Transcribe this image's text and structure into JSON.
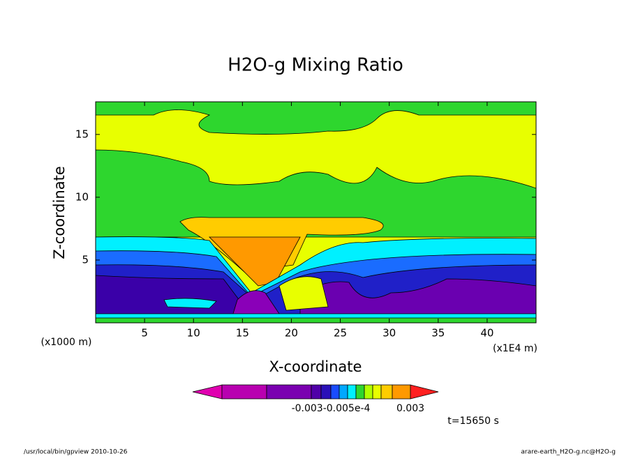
{
  "chart_data": {
    "type": "contour",
    "title": "H2O-g Mixing Ratio",
    "x_label": "X-coordinate",
    "y_label": "Z-coordinate",
    "x_unit": "(x1E4 m)",
    "y_unit": "(x1000 m)",
    "xlim": [
      0,
      45
    ],
    "xticks": [
      5,
      10,
      15,
      20,
      25,
      30,
      35,
      40
    ],
    "ylim": [
      0,
      17.6
    ],
    "yticks": [
      5,
      10,
      15
    ],
    "colorbar_labels": [
      "-0.003-0.005e-4",
      "0.003"
    ],
    "time_label": "t=15650 s",
    "footer_left": "/usr/local/bin/gpview  2010-10-26",
    "footer_right": "arare-earth_H2O-g.nc@H2O-g"
  }
}
